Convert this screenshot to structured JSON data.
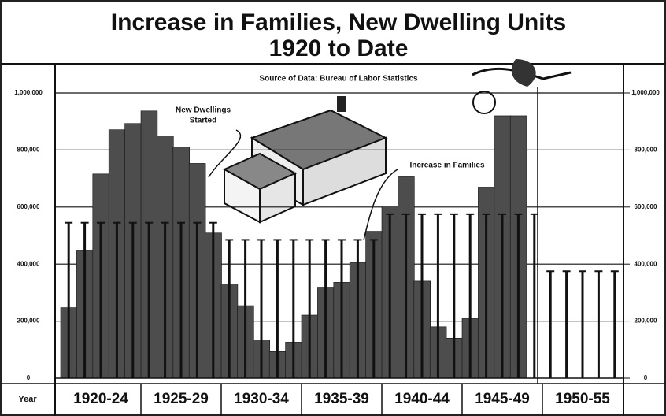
{
  "chart_data": {
    "type": "bar",
    "title": [
      "Increase in Families, New Dwelling Units",
      "1920 to Date"
    ],
    "subtitle": "Source of Data: Bureau of Labor Statistics",
    "x_label": "Year",
    "categories": [
      "1920-24",
      "1925-29",
      "1930-34",
      "1935-39",
      "1940-44",
      "1945-49",
      "1950-55"
    ],
    "annotations": [
      [
        "New Dwellings",
        "Started"
      ],
      [
        "Increase in Families"
      ]
    ],
    "series": [
      {
        "name": "New Dwellings Started",
        "color": "#4d4d4d",
        "style": "step-bar",
        "values": [
          [
            247000,
            449000,
            716000,
            871000,
            893000
          ],
          [
            937000,
            849000,
            810000,
            753000,
            509000
          ],
          [
            330000,
            254000,
            134000,
            93000,
            126000
          ],
          [
            221000,
            319000,
            336000,
            406000,
            515000
          ],
          [
            603000,
            706000,
            340000,
            180000,
            140000
          ],
          [
            210000,
            670000,
            920000,
            920000,
            null
          ],
          []
        ]
      },
      {
        "name": "Increase in Families",
        "color": "#111111",
        "style": "lollipop",
        "values": [
          [
            545000,
            545000,
            545000,
            545000,
            545000
          ],
          [
            545000,
            545000,
            545000,
            545000,
            545000
          ],
          [
            485000,
            485000,
            485000,
            485000,
            485000
          ],
          [
            485000,
            485000,
            485000,
            485000,
            485000
          ],
          [
            575000,
            575000,
            575000,
            575000,
            575000
          ],
          [
            575000,
            575000,
            575000,
            575000,
            575000
          ],
          [
            375000,
            375000,
            375000,
            375000,
            375000
          ]
        ]
      }
    ],
    "ylim": [
      0,
      1000000
    ],
    "yticks": [
      0,
      {
        "value": 200000,
        "label": "200,000"
      },
      {
        "value": 400000,
        "label": "400,000"
      },
      {
        "value": 600000,
        "label": "600,000"
      },
      {
        "value": 800000,
        "label": "800,000"
      },
      {
        "value": 1000000,
        "label": "1,000,000"
      }
    ],
    "y2lim": [
      0,
      1000000
    ],
    "y2ticks": [
      0,
      {
        "value": 200000,
        "label": "200,000"
      },
      {
        "value": 400000,
        "label": "400,000"
      },
      {
        "value": 600000,
        "label": "600,000"
      },
      {
        "value": 800000,
        "label": "800,000"
      },
      {
        "value": 1000000,
        "label": "1,000,000"
      }
    ],
    "grid": true
  }
}
